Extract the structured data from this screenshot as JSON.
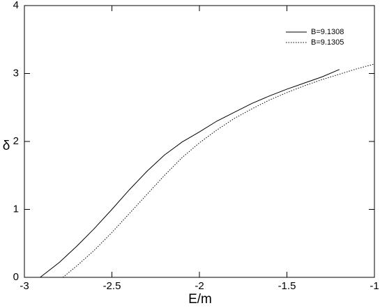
{
  "chart_data": {
    "type": "line",
    "x_label": "E/m",
    "y_label": "δ",
    "xlim": [
      -3,
      -1
    ],
    "xticks": [
      -3,
      -2.5,
      -2,
      -1.5,
      -1
    ],
    "ylim": [
      0,
      4
    ],
    "yticks": [
      0,
      1,
      2,
      3,
      4
    ],
    "legend": "upper right",
    "series": [
      {
        "name": "B=9.1308",
        "color": "#000000",
        "style": "solid",
        "x": [
          -2.91,
          -2.8,
          -2.7,
          -2.6,
          -2.5,
          -2.4,
          -2.3,
          -2.2,
          -2.1,
          -2,
          -1.9,
          -1.8,
          -1.7,
          -1.6,
          -1.5,
          -1.4,
          -1.3,
          -1.2
        ],
        "values": [
          0,
          0.22,
          0.46,
          0.72,
          1.0,
          1.29,
          1.56,
          1.8,
          1.99,
          2.14,
          2.3,
          2.43,
          2.56,
          2.67,
          2.77,
          2.86,
          2.95,
          3.06
        ]
      },
      {
        "name": "B=9.1305",
        "color": "#000000",
        "style": "dotted",
        "x": [
          -2.78,
          -2.7,
          -2.6,
          -2.5,
          -2.4,
          -2.3,
          -2.2,
          -2.1,
          -2,
          -1.9,
          -1.8,
          -1.7,
          -1.6,
          -1.5,
          -1.4,
          -1.3,
          -1.2,
          -1.1,
          -1
        ],
        "values": [
          0,
          0.17,
          0.4,
          0.66,
          0.94,
          1.22,
          1.5,
          1.76,
          1.98,
          2.17,
          2.34,
          2.48,
          2.61,
          2.72,
          2.82,
          2.91,
          2.99,
          3.07,
          3.14
        ]
      }
    ]
  }
}
